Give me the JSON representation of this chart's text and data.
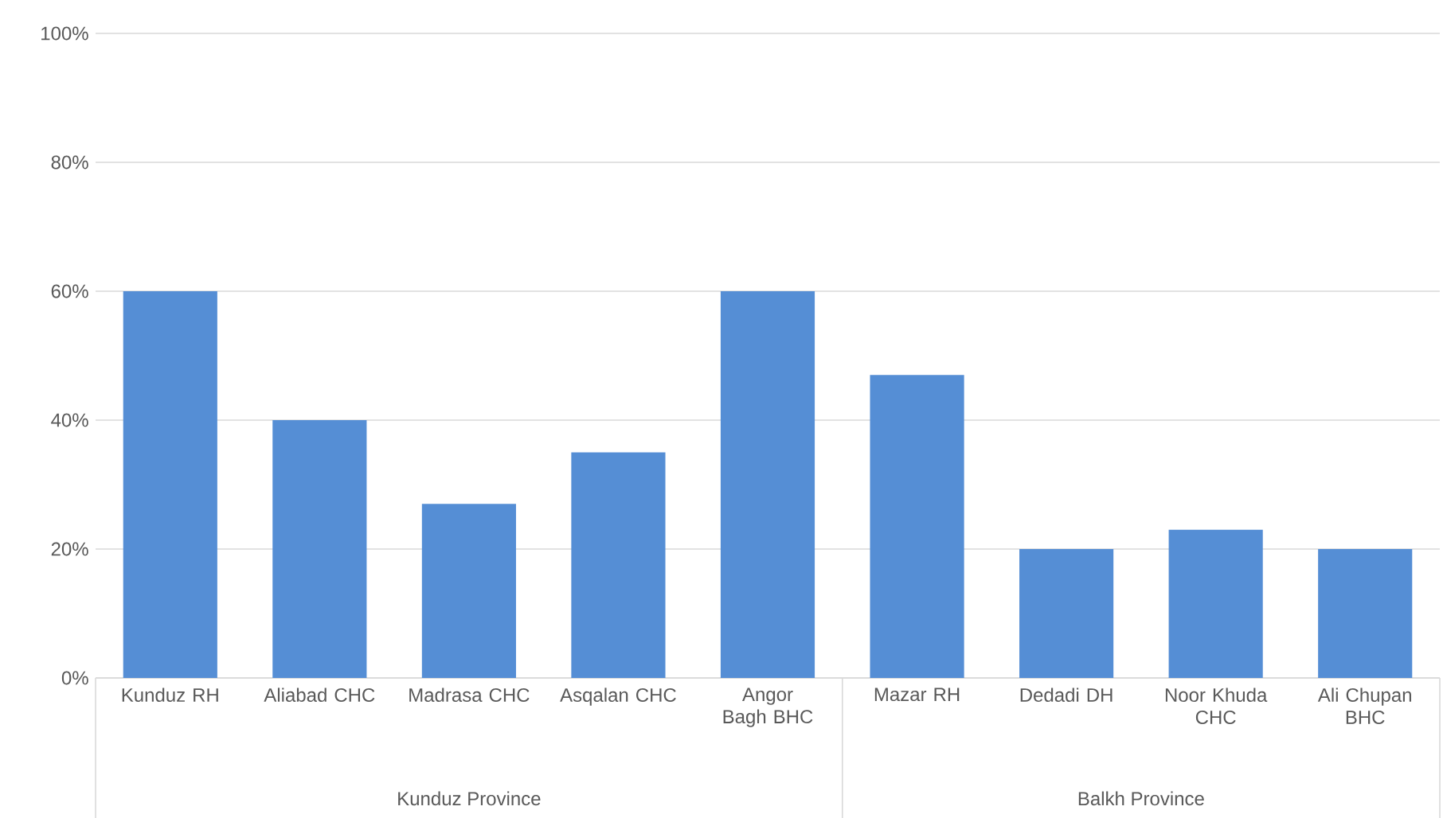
{
  "chart_data": {
    "type": "bar",
    "categories": [
      "Kunduz RH",
      "Aliabad CHC",
      "Madrasa CHC",
      "Asqalan CHC",
      "Angor Bagh BHC",
      "Mazar RH",
      "Dedadi DH",
      "Noor Khuda CHC",
      "Ali Chupan BHC"
    ],
    "values": [
      60,
      40,
      27,
      35,
      60,
      47,
      20,
      23,
      20
    ],
    "color": "#558ed5",
    "ylim": [
      0,
      100
    ],
    "yticks": [
      {
        "value": 0,
        "label": "0%"
      },
      {
        "value": 20,
        "label": "20%"
      },
      {
        "value": 40,
        "label": "40%"
      },
      {
        "value": 60,
        "label": "60%"
      },
      {
        "value": 80,
        "label": "80%"
      },
      {
        "value": 100,
        "label": "100%"
      }
    ],
    "grid": "y",
    "annotations": [
      "Kunduz Province",
      "Balkh Province"
    ]
  }
}
